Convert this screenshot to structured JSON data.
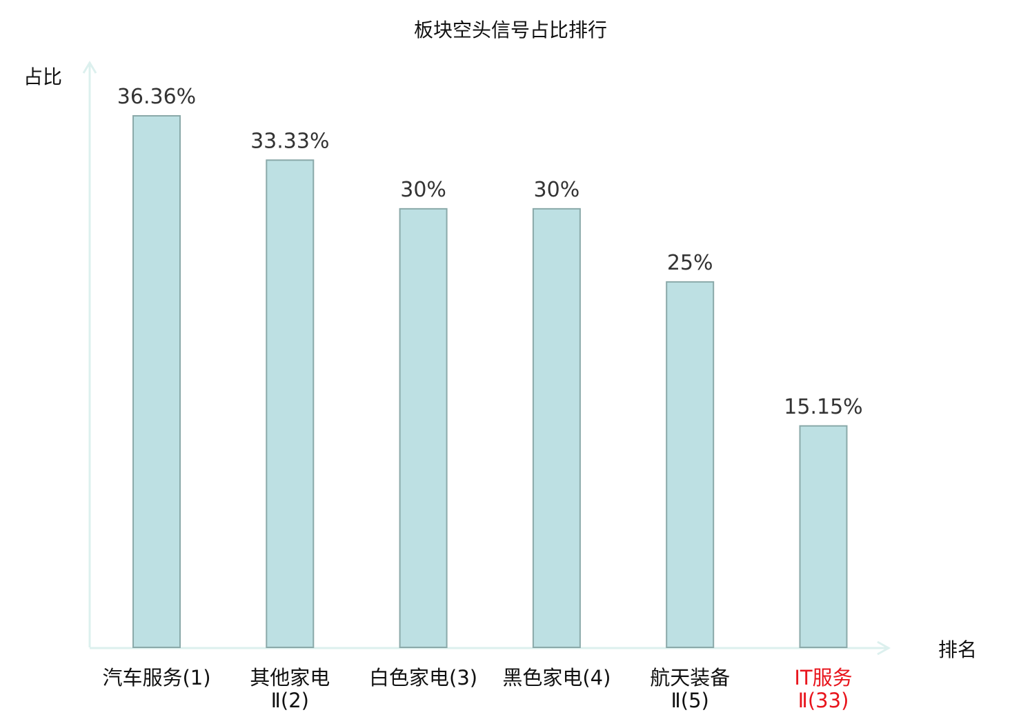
{
  "chart_data": {
    "type": "bar",
    "title": "板块空头信号占比排行",
    "xlabel": "排名",
    "ylabel": "占比",
    "categories": [
      "汽车服务(1)",
      "其他家电Ⅱ(2)",
      "白色家电(3)",
      "黑色家电(4)",
      "航天装备Ⅱ(5)",
      "IT服务Ⅱ(33)"
    ],
    "values": [
      36.36,
      33.33,
      30,
      30,
      25,
      15.15
    ],
    "data_labels": [
      "36.36%",
      "33.33%",
      "30%",
      "30%",
      "25%",
      "15.15%"
    ],
    "ylim": [
      0,
      36.36
    ],
    "grid": false,
    "highlight_category_index": 5,
    "colors": {
      "bar_fill": "#bde0e3",
      "bar_stroke": "#8aa9a9",
      "axis": "#dcf0ee",
      "highlight_text": "#e8141c",
      "text": "#111111",
      "data_label": "#333333"
    }
  }
}
